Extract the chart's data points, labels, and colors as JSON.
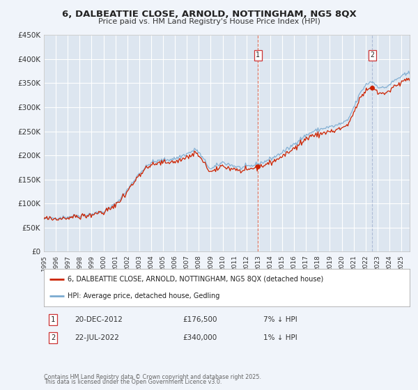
{
  "title_line1": "6, DALBEATTIE CLOSE, ARNOLD, NOTTINGHAM, NG5 8QX",
  "title_line2": "Price paid vs. HM Land Registry's House Price Index (HPI)",
  "background_color": "#f0f4fa",
  "plot_bg_color": "#dde6f0",
  "grid_color": "#ffffff",
  "hpi_color": "#7aaad0",
  "price_color": "#cc2200",
  "ylim": [
    0,
    450000
  ],
  "yticks": [
    0,
    50000,
    100000,
    150000,
    200000,
    250000,
    300000,
    350000,
    400000,
    450000
  ],
  "ytick_labels": [
    "£0",
    "£50K",
    "£100K",
    "£150K",
    "£200K",
    "£250K",
    "£300K",
    "£350K",
    "£400K",
    "£450K"
  ],
  "sale1_year": 2012.9671,
  "sale1_price": 176500,
  "sale2_year": 2022.5534,
  "sale2_price": 340000,
  "legend_entry1": "6, DALBEATTIE CLOSE, ARNOLD, NOTTINGHAM, NG5 8QX (detached house)",
  "legend_entry2": "HPI: Average price, detached house, Gedling",
  "footnote3": "Contains HM Land Registry data © Crown copyright and database right 2025.",
  "footnote4": "This data is licensed under the Open Government Licence v3.0.",
  "xlim_start": 1995.0,
  "xlim_end": 2025.7
}
